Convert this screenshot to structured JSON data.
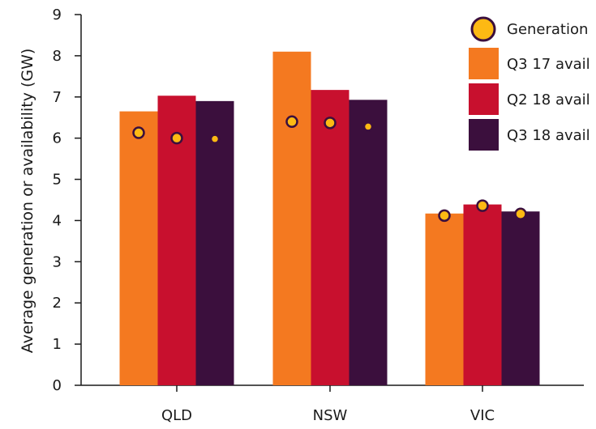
{
  "chart_data": {
    "type": "bar",
    "title": "",
    "xlabel": "",
    "ylabel": "Average generation or availability (GW)",
    "ylim": [
      0,
      9
    ],
    "yticks": [
      0,
      1,
      2,
      3,
      4,
      5,
      6,
      7,
      8,
      9
    ],
    "categories": [
      "QLD",
      "NSW",
      "VIC"
    ],
    "series": [
      {
        "name": "Q3 17 avail",
        "color": "#f47920",
        "values": [
          6.65,
          8.1,
          4.17
        ],
        "generation": [
          6.13,
          6.4,
          4.12
        ]
      },
      {
        "name": "Q2 18 avail",
        "color": "#c8102e",
        "values": [
          7.03,
          7.17,
          4.39
        ],
        "generation": [
          6.0,
          6.37,
          4.36
        ]
      },
      {
        "name": "Q3 18 avail",
        "color": "#3b0f3d",
        "values": [
          6.9,
          6.93,
          4.22
        ],
        "generation": [
          5.98,
          6.28,
          4.16
        ]
      }
    ],
    "generation_marker": {
      "name": "Generation",
      "fill": "#fdb913",
      "stroke": "#3b0f3d"
    },
    "legend_position": "top-right",
    "grid": false
  }
}
